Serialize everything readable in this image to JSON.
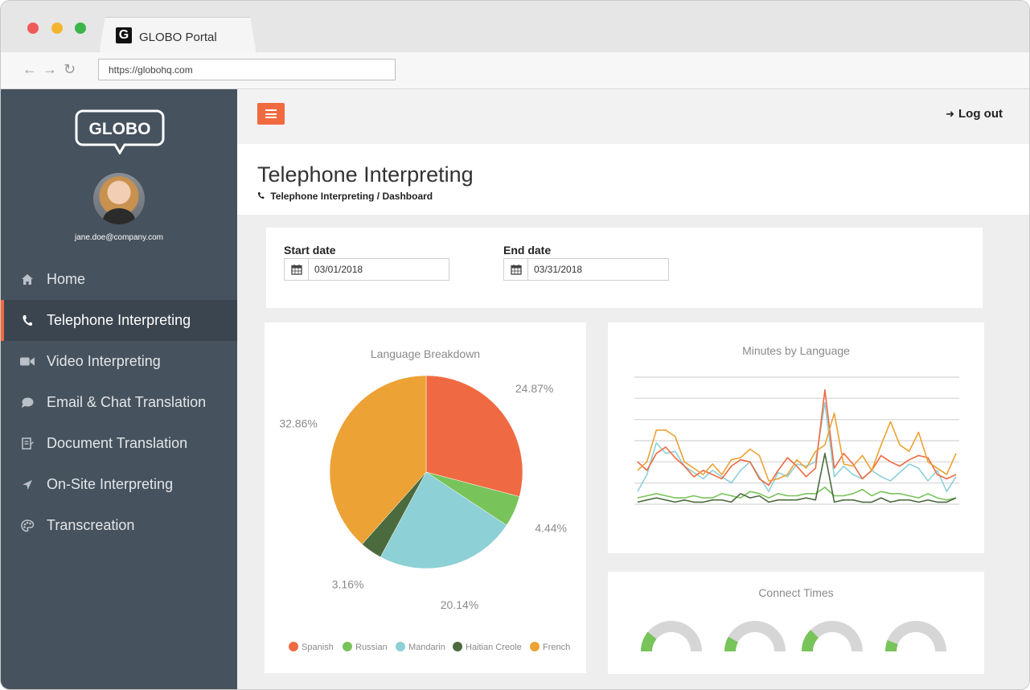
{
  "browser": {
    "tab_title": "GLOBO Portal",
    "tab_icon_letter": "G",
    "url": "https://globohq.com"
  },
  "sidebar": {
    "logo_text": "GLOBO",
    "user_email": "jane.doe@company.com",
    "items": [
      {
        "label": "Home",
        "icon": "home-icon"
      },
      {
        "label": "Telephone Interpreting",
        "icon": "phone-icon"
      },
      {
        "label": "Video Interpreting",
        "icon": "video-camera-icon"
      },
      {
        "label": "Email & Chat Translation",
        "icon": "chat-bubble-icon"
      },
      {
        "label": "Document Translation",
        "icon": "document-icon"
      },
      {
        "label": "On-Site Interpreting",
        "icon": "location-arrow-icon"
      },
      {
        "label": "Transcreation",
        "icon": "palette-icon"
      }
    ],
    "active_index": 1
  },
  "topbar": {
    "logout_label": "Log out"
  },
  "header": {
    "title": "Telephone Interpreting",
    "breadcrumb": "Telephone Interpreting / Dashboard"
  },
  "filters": {
    "start_label": "Start date",
    "start_value": "03/01/2018",
    "end_label": "End date",
    "end_value": "03/31/2018"
  },
  "colors": {
    "accent": "#f06a3f",
    "spanish": "#ef6a42",
    "russian": "#78c35a",
    "mandarin": "#8dd0d6",
    "haitian_creole": "#4b6b3e",
    "french": "#eca234",
    "gauge_gray": "#d6d6d6"
  },
  "chart_data": [
    {
      "type": "pie",
      "title": "Language Breakdown",
      "categories": [
        "Spanish",
        "Russian",
        "Mandarin",
        "Haitian Creole",
        "French"
      ],
      "values": [
        24.87,
        4.44,
        20.14,
        3.16,
        32.86
      ],
      "labels": [
        "24.87%",
        "4.44%",
        "20.14%",
        "3.16%",
        "32.86%"
      ],
      "legend": "bottom"
    },
    {
      "type": "line",
      "title": "Minutes by Language",
      "x": [
        1,
        2,
        3,
        4,
        5,
        6,
        7,
        8,
        9,
        10,
        11,
        12,
        13,
        14,
        15,
        16,
        17,
        18,
        19,
        20,
        21,
        22,
        23,
        24,
        25,
        26,
        27,
        28,
        29,
        30,
        31,
        32,
        33,
        34,
        35
      ],
      "ylim": [
        0,
        6
      ],
      "grid": true,
      "series": [
        {
          "name": "Spanish",
          "values": [
            2.0,
            1.6,
            2.4,
            2.7,
            2.2,
            1.8,
            1.3,
            1.6,
            1.4,
            1.2,
            1.8,
            2.1,
            2.0,
            1.2,
            0.9,
            1.6,
            2.2,
            1.8,
            1.3,
            1.7,
            5.4,
            1.7,
            2.4,
            1.9,
            1.2,
            1.6,
            2.3,
            2.0,
            1.8,
            2.1,
            2.3,
            2.2,
            1.4,
            1.2,
            1.4
          ]
        },
        {
          "name": "Russian",
          "values": [
            0.3,
            0.4,
            0.5,
            0.4,
            0.3,
            0.3,
            0.4,
            0.3,
            0.3,
            0.5,
            0.4,
            0.3,
            0.6,
            0.5,
            0.3,
            0.5,
            0.4,
            0.4,
            0.5,
            0.5,
            0.8,
            0.4,
            0.4,
            0.5,
            0.7,
            0.4,
            0.6,
            0.5,
            0.5,
            0.4,
            0.3,
            0.5,
            0.3,
            0.2,
            0.3
          ]
        },
        {
          "name": "Mandarin",
          "values": [
            0.6,
            1.4,
            2.9,
            2.4,
            2.5,
            1.8,
            1.5,
            1.2,
            1.6,
            1.3,
            1.0,
            1.6,
            2.0,
            1.3,
            0.6,
            1.5,
            1.3,
            1.9,
            1.8,
            2.0,
            4.8,
            1.3,
            1.8,
            1.4,
            1.2,
            1.6,
            1.3,
            1.1,
            1.5,
            1.9,
            1.7,
            1.1,
            1.6,
            0.6,
            1.3
          ]
        },
        {
          "name": "Haitian Creole",
          "values": [
            0.1,
            0.2,
            0.3,
            0.2,
            0.1,
            0.2,
            0.1,
            0.1,
            0.2,
            0.2,
            0.1,
            0.5,
            0.3,
            0.4,
            0.1,
            0.2,
            0.2,
            0.2,
            0.3,
            0.2,
            2.4,
            0.1,
            0.2,
            0.2,
            0.1,
            0.1,
            0.3,
            0.1,
            0.2,
            0.2,
            0.1,
            0.2,
            0.1,
            0.1,
            0.3
          ]
        },
        {
          "name": "French",
          "values": [
            1.6,
            2.0,
            3.5,
            3.5,
            3.2,
            2.0,
            1.7,
            1.4,
            1.9,
            1.4,
            2.1,
            2.2,
            2.6,
            2.3,
            1.1,
            1.2,
            1.4,
            2.1,
            1.7,
            2.5,
            2.8,
            4.3,
            1.9,
            1.8,
            2.3,
            1.6,
            2.8,
            3.9,
            2.8,
            2.5,
            3.4,
            2.0,
            1.7,
            1.4,
            2.4
          ]
        }
      ]
    },
    {
      "type": "gauge",
      "title": "Connect Times",
      "values": [
        0.22,
        0.16,
        0.25,
        0.12
      ]
    }
  ]
}
